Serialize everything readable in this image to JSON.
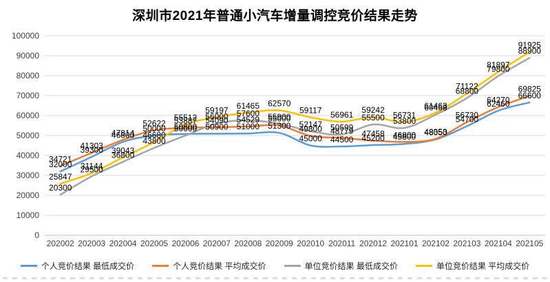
{
  "title": "深圳市2021年普通小汽车增量调控竞价结果走势",
  "y_axis": {
    "tick_labels": [
      "0",
      "10000",
      "20000",
      "30000",
      "40000",
      "50000",
      "60000",
      "70000",
      "80000",
      "90000",
      "100000"
    ]
  },
  "chart_data": {
    "type": "line",
    "title": "深圳市2021年普通小汽车增量调控竞价结果走势",
    "categories": [
      "202002",
      "202003",
      "202004",
      "202005",
      "202006",
      "202007",
      "202008",
      "202009",
      "202010",
      "202011",
      "202012",
      "202101",
      "202102",
      "202103",
      "202104",
      "202105"
    ],
    "series": [
      {
        "key": "personal-min",
        "name": "个人竞价结果 最低成交价",
        "color": "#5B9BD5",
        "values": [
          32000,
          39300,
          46800,
          50000,
          50800,
          50900,
          51000,
          51300,
          45000,
          44500,
          45200,
          45800,
          48050,
          54700,
          62460,
          66600
        ]
      },
      {
        "key": "personal-avg",
        "name": "个人竞价结果 平均成交价",
        "color": "#ED7D31",
        "values": [
          34721,
          41303,
          47814,
          52622,
          53887,
          54090,
          54529,
          55000,
          49800,
          48779,
          47458,
          46800,
          48353,
          56730,
          64270,
          69825
        ]
      },
      {
        "key": "unit-min",
        "name": "单位竞价结果 最低成交价",
        "color": "#A5A5A5",
        "values": [
          20300,
          29500,
          36800,
          43800,
          50000,
          56000,
          57600,
          55900,
          52147,
          50599,
          55500,
          53800,
          60468,
          68800,
          79800,
          88900
        ]
      },
      {
        "key": "unit-avg",
        "name": "单位竞价结果 平均成交价",
        "color": "#FFC000",
        "values": [
          25847,
          31144,
          39043,
          46680,
          55512,
          59197,
          61465,
          62570,
          59117,
          56961,
          59242,
          56731,
          61463,
          71122,
          81897,
          91925
        ]
      }
    ],
    "xlabel": "",
    "ylabel": "",
    "ylim": [
      0,
      100000
    ],
    "ytick_step": 10000,
    "grid": "horizontal",
    "gridline_color": "#D9D9D9",
    "axis_label_color": "#404040",
    "data_label_color": "#000000",
    "legend_position": "bottom",
    "smooth": true,
    "data_labels": "above"
  }
}
